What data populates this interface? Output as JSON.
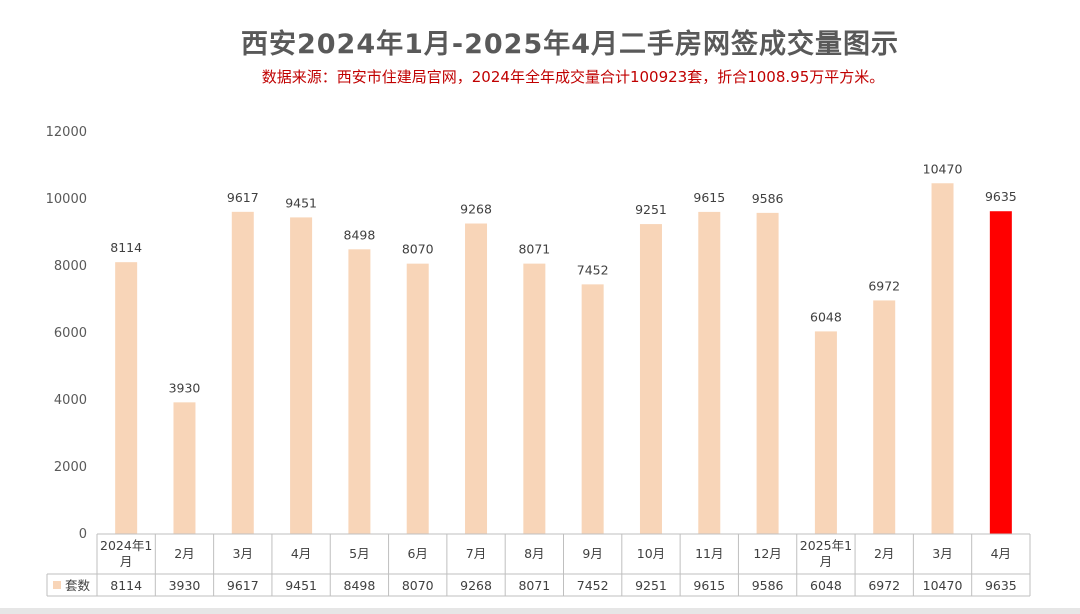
{
  "header": {
    "title": "西安2024年1月-2025年4月二手房网签成交量图示",
    "subtitle": "数据来源：西安市住建局官网，2024年全年成交量合计100923套，折合1008.95万平方米。"
  },
  "chart_data": {
    "type": "bar",
    "categories": [
      "2024年1月",
      "2月",
      "3月",
      "4月",
      "5月",
      "6月",
      "7月",
      "8月",
      "9月",
      "10月",
      "11月",
      "12月",
      "2025年1月",
      "2月",
      "3月",
      "4月"
    ],
    "series": [
      {
        "name": "套数",
        "values": [
          8114,
          3930,
          9617,
          9451,
          8498,
          8070,
          9268,
          8071,
          7452,
          9251,
          9615,
          9586,
          6048,
          6972,
          10470,
          9635
        ]
      }
    ],
    "ylim": [
      0,
      12000
    ],
    "yticks": [
      0,
      2000,
      4000,
      6000,
      8000,
      10000,
      12000
    ],
    "data_labels": true,
    "data_table": true,
    "grid": false,
    "colors": {
      "bar": "#f8d5b8",
      "highlight_bar": "#ff0000",
      "highlight_index": 15,
      "axis": "#bfbfbf"
    }
  }
}
